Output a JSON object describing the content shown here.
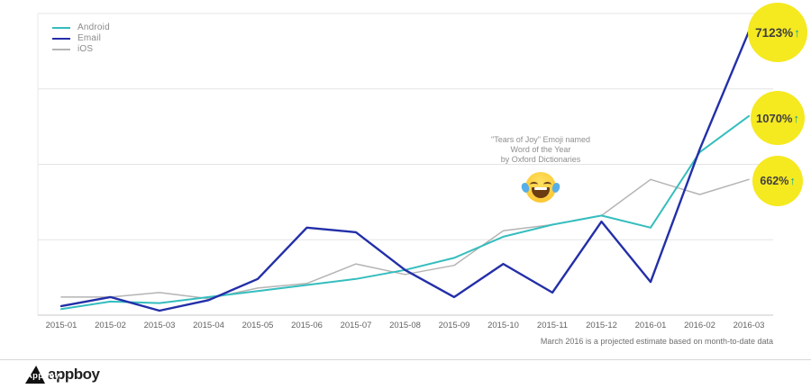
{
  "legend": {
    "items": [
      {
        "label": "Android",
        "color": "#35bdbe"
      },
      {
        "label": "Email",
        "color": "#232fa8"
      },
      {
        "label": "iOS",
        "color": "#b4b4b4"
      }
    ]
  },
  "badges": [
    {
      "value": "7123%",
      "arrow": "↑"
    },
    {
      "value": "1070%",
      "arrow": "↑"
    },
    {
      "value": "662%",
      "arrow": "↑"
    }
  ],
  "badge_style": {
    "background": "#f5e920",
    "text_color": "#3f3f3f",
    "arrow_color": "#00a79d"
  },
  "annotation": {
    "lines": [
      "\"Tears of Joy\" Emoji named",
      "Word of the Year",
      "by Oxford Dictionaries"
    ],
    "emoji_name": "face-with-tears-of-joy"
  },
  "footnote": "March 2016 is a projected estimate based on month-to-date data",
  "footer": {
    "brand": "Appboy",
    "wordmark": "appboy"
  },
  "chart_data": {
    "type": "line",
    "title": "",
    "xlabel": "",
    "ylabel": "",
    "y_axis_labeled": false,
    "ylim": [
      0,
      100
    ],
    "grid": true,
    "legend_position": "top-left",
    "x": [
      "2015-01",
      "2015-02",
      "2015-03",
      "2015-04",
      "2015-05",
      "2015-06",
      "2015-07",
      "2015-08",
      "2015-09",
      "2015-10",
      "2015-11",
      "2015-12",
      "2016-01",
      "2016-02",
      "2016-03"
    ],
    "series": [
      {
        "name": "Android",
        "color": "#35bdbe",
        "growth_label": "1070%",
        "values": [
          2,
          4.5,
          4,
          6,
          8,
          10,
          12,
          15,
          19,
          26,
          30,
          33,
          29,
          54,
          66
        ]
      },
      {
        "name": "Email",
        "color": "#232fa8",
        "growth_label": "7123%",
        "values": [
          3,
          6,
          1.5,
          5,
          12,
          29,
          27.5,
          15,
          6,
          17,
          7.5,
          31,
          11,
          55,
          94
        ]
      },
      {
        "name": "iOS",
        "color": "#b4b4b4",
        "growth_label": "662%",
        "values": [
          6,
          6,
          7.5,
          5.5,
          9,
          10.5,
          17,
          13.5,
          16.5,
          28,
          30,
          33,
          45,
          40,
          45
        ]
      }
    ]
  }
}
